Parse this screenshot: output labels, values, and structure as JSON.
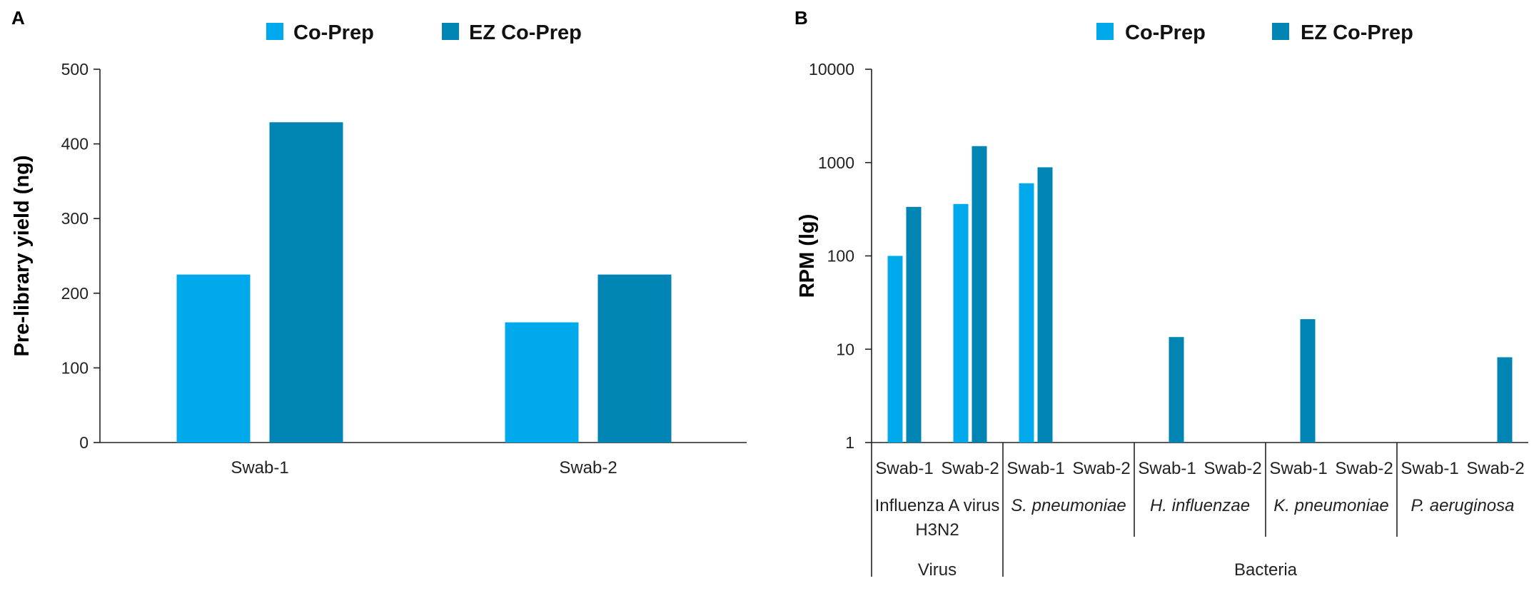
{
  "colors": {
    "co_prep": "#00a9ec",
    "ez_co_prep": "#0085b5",
    "axis": "#222222"
  },
  "chart_data": [
    {
      "panel": "A",
      "type": "bar",
      "legend": [
        "Co-Prep",
        "EZ Co-Prep"
      ],
      "legend_placement": "top-center",
      "ylabel": "Pre-library yield (ng)",
      "xlabel": "",
      "ylim": [
        0,
        500
      ],
      "yticks": [
        0,
        100,
        200,
        300,
        400,
        500
      ],
      "categories": [
        "Swab-1",
        "Swab-2"
      ],
      "series": [
        {
          "name": "Co-Prep",
          "values": [
            225,
            161
          ]
        },
        {
          "name": "EZ Co-Prep",
          "values": [
            429,
            225
          ]
        }
      ],
      "grid": false
    },
    {
      "panel": "B",
      "type": "bar",
      "legend": [
        "Co-Prep",
        "EZ Co-Prep"
      ],
      "legend_placement": "top-center",
      "ylabel": "RPM (lg)",
      "xlabel": "",
      "yscale": "log",
      "ylim": [
        1,
        10000
      ],
      "yticks": [
        1,
        10,
        100,
        1000,
        10000
      ],
      "categories": [
        "Swab-1",
        "Swab-2",
        "Swab-1",
        "Swab-2",
        "Swab-1",
        "Swab-2",
        "Swab-1",
        "Swab-2",
        "Swab-1",
        "Swab-2"
      ],
      "groups": [
        {
          "name": "Influenza A virus",
          "name2": "H3N2",
          "italic": false
        },
        {
          "name": "S. pneumoniae",
          "italic": true
        },
        {
          "name": "H. influenzae",
          "italic": true
        },
        {
          "name": "K. pneumoniae",
          "italic": true
        },
        {
          "name": "P. aeruginosa",
          "italic": true
        }
      ],
      "supergroups": [
        {
          "name": "Virus",
          "span": 1
        },
        {
          "name": "Bacteria",
          "span": 4
        }
      ],
      "series": [
        {
          "name": "Co-Prep",
          "values": [
            100,
            360,
            600,
            null,
            null,
            null,
            null,
            null,
            null,
            null
          ]
        },
        {
          "name": "EZ Co-Prep",
          "values": [
            335,
            1500,
            890,
            null,
            13.5,
            null,
            21,
            null,
            null,
            8.2
          ]
        }
      ],
      "grid": false
    }
  ]
}
